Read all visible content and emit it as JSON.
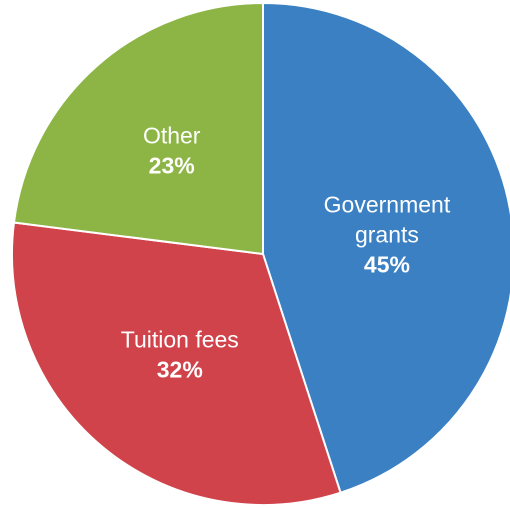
{
  "chart_data": {
    "type": "pie",
    "title": "",
    "slices": [
      {
        "name_lines": [
          "Government",
          "grants"
        ],
        "value": 45,
        "pct_label": "45%",
        "color": "#3a80c2"
      },
      {
        "name_lines": [
          "Tuition fees"
        ],
        "value": 32,
        "pct_label": "32%",
        "color": "#d0434b"
      },
      {
        "name_lines": [
          "Other"
        ],
        "value": 23,
        "pct_label": "23%",
        "color": "#8db545"
      }
    ],
    "start_angle_deg": 0,
    "direction": "clockwise",
    "legend": "none"
  }
}
